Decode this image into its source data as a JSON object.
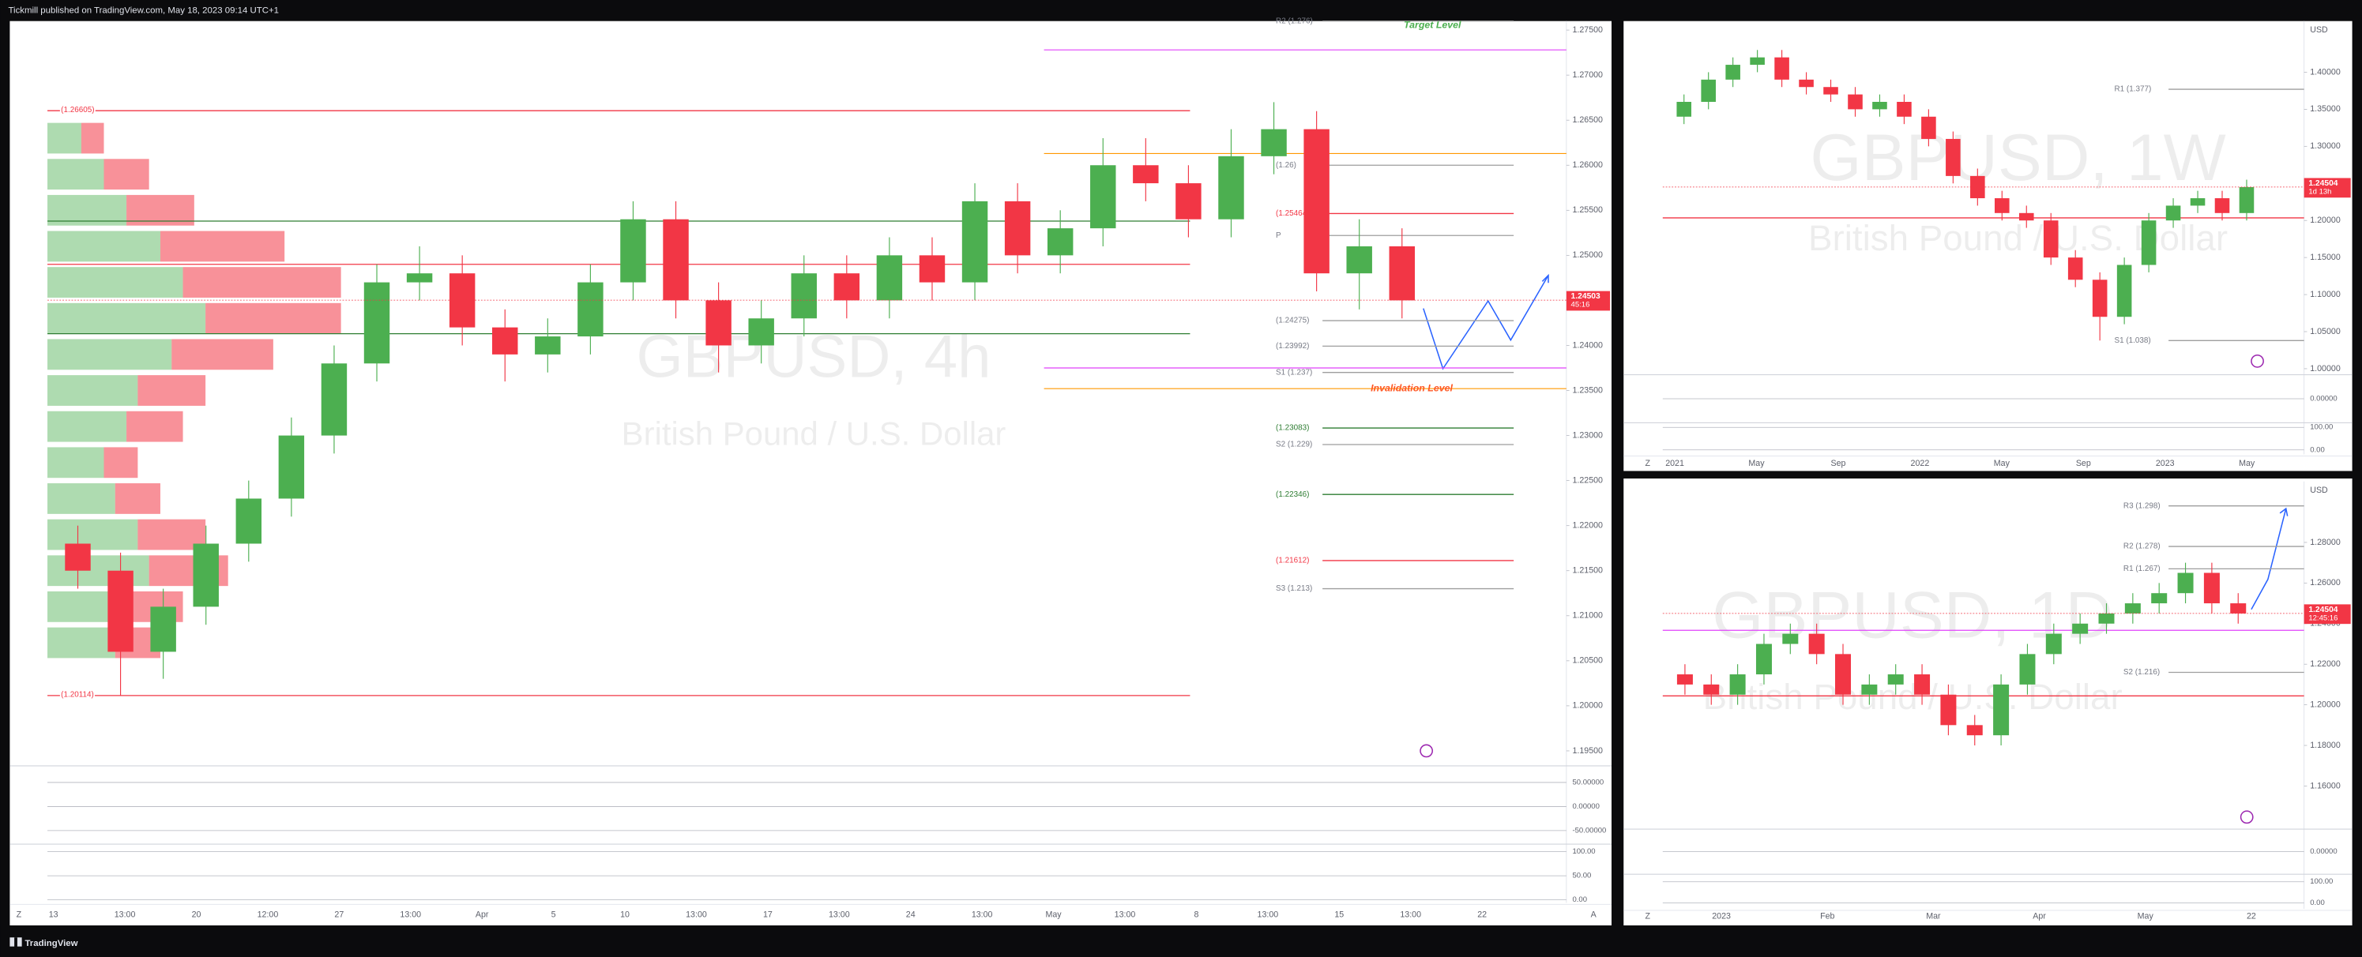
{
  "header": "Tickmill published on TradingView.com, May 18, 2023 09:14 UTC+1",
  "footer": "TradingView",
  "chart_data": [
    {
      "type": "candlestick",
      "title": "GBPUSD, 4h",
      "subtitle": "British Pound / U.S. Dollar",
      "up_color": "#4caf50",
      "down_color": "#f23645",
      "ylim": [
        1.194,
        1.276
      ],
      "yticks": [
        {
          "value": 1.195,
          "label": "1.19500"
        },
        {
          "value": 1.2,
          "label": "1.20000"
        },
        {
          "value": 1.205,
          "label": "1.20500"
        },
        {
          "value": 1.21,
          "label": "1.21000"
        },
        {
          "value": 1.215,
          "label": "1.21500"
        },
        {
          "value": 1.22,
          "label": "1.22000"
        },
        {
          "value": 1.225,
          "label": "1.22500"
        },
        {
          "value": 1.23,
          "label": "1.23000"
        },
        {
          "value": 1.235,
          "label": "1.23500"
        },
        {
          "value": 1.24,
          "label": "1.24000"
        },
        {
          "value": 1.245,
          "label": "1.24500"
        },
        {
          "value": 1.25,
          "label": "1.25000"
        },
        {
          "value": 1.255,
          "label": "1.25500"
        },
        {
          "value": 1.26,
          "label": "1.26000"
        },
        {
          "value": 1.265,
          "label": "1.26500"
        },
        {
          "value": 1.27,
          "label": "1.27000"
        },
        {
          "value": 1.275,
          "label": "1.27500"
        }
      ],
      "open": [
        1.218,
        1.215,
        1.206,
        1.211,
        1.218,
        1.223,
        1.23,
        1.238,
        1.247,
        1.248,
        1.242,
        1.239,
        1.241,
        1.247,
        1.254,
        1.245,
        1.24,
        1.243,
        1.248,
        1.245,
        1.25,
        1.247,
        1.256,
        1.25,
        1.253,
        1.26,
        1.258,
        1.254,
        1.261,
        1.264,
        1.248,
        1.251
      ],
      "high": [
        1.22,
        1.217,
        1.213,
        1.22,
        1.225,
        1.232,
        1.24,
        1.249,
        1.251,
        1.25,
        1.244,
        1.243,
        1.249,
        1.256,
        1.256,
        1.247,
        1.245,
        1.25,
        1.25,
        1.252,
        1.252,
        1.258,
        1.258,
        1.255,
        1.263,
        1.263,
        1.26,
        1.264,
        1.267,
        1.266,
        1.254,
        1.253
      ],
      "low": [
        1.213,
        1.20114,
        1.203,
        1.209,
        1.216,
        1.221,
        1.228,
        1.236,
        1.245,
        1.24,
        1.236,
        1.237,
        1.239,
        1.245,
        1.243,
        1.237,
        1.238,
        1.241,
        1.243,
        1.243,
        1.245,
        1.245,
        1.248,
        1.248,
        1.251,
        1.256,
        1.252,
        1.252,
        1.259,
        1.246,
        1.244,
        1.243
      ],
      "close": [
        1.215,
        1.206,
        1.211,
        1.218,
        1.223,
        1.23,
        1.238,
        1.247,
        1.248,
        1.242,
        1.239,
        1.241,
        1.247,
        1.254,
        1.245,
        1.24,
        1.243,
        1.248,
        1.245,
        1.25,
        1.247,
        1.256,
        1.25,
        1.253,
        1.26,
        1.258,
        1.254,
        1.261,
        1.264,
        1.248,
        1.251,
        1.245
      ],
      "volume_profile": {
        "prices": [
          1.207,
          1.211,
          1.215,
          1.219,
          1.223,
          1.227,
          1.231,
          1.235,
          1.239,
          1.243,
          1.247,
          1.251,
          1.255,
          1.259,
          1.263
        ],
        "buy": [
          30,
          35,
          45,
          40,
          30,
          25,
          35,
          40,
          55,
          70,
          60,
          50,
          35,
          25,
          15
        ],
        "sell": [
          20,
          25,
          35,
          30,
          20,
          15,
          25,
          30,
          45,
          60,
          70,
          55,
          30,
          20,
          10
        ]
      },
      "zones": [
        {
          "value": 1.26605,
          "label": "(1.26605)",
          "color": "#f23645"
        },
        {
          "value": 1.2538,
          "color": "#2e7d32"
        },
        {
          "value": 1.249,
          "color": "#f23645"
        },
        {
          "value": 1.2413,
          "color": "#2e7d32"
        },
        {
          "value": 1.20114,
          "label": "(1.20114)",
          "color": "#f23645"
        }
      ],
      "levels": [
        {
          "value": 1.276,
          "label": "R2 (1.276)",
          "color": "#9e9e9e"
        },
        {
          "value": 1.26,
          "label": "(1.26)",
          "color": "#9e9e9e"
        },
        {
          "value": 1.25464,
          "label": "(1.25464)",
          "color": "#f23645"
        },
        {
          "value": 1.2522,
          "label": "P",
          "color": "#9e9e9e"
        },
        {
          "value": 1.24275,
          "label": "(1.24275)",
          "color": "#9e9e9e"
        },
        {
          "value": 1.23992,
          "label": "(1.23992)",
          "color": "#9e9e9e"
        },
        {
          "value": 1.237,
          "label": "S1 (1.237)",
          "color": "#9e9e9e"
        },
        {
          "value": 1.23083,
          "label": "(1.23083)",
          "color": "#2e7d32"
        },
        {
          "value": 1.229,
          "label": "S2 (1.229)",
          "color": "#9e9e9e"
        },
        {
          "value": 1.22346,
          "label": "(1.22346)",
          "color": "#2e7d32"
        },
        {
          "value": 1.21612,
          "label": "(1.21612)",
          "color": "#f23645"
        },
        {
          "value": 1.213,
          "label": "S3 (1.213)",
          "color": "#9e9e9e"
        }
      ],
      "targets": [
        {
          "value": 1.2728,
          "color": "#e040fb"
        },
        {
          "value": 1.2375,
          "color": "#e040fb"
        },
        {
          "value": 1.2613,
          "color": "#ff9800"
        },
        {
          "value": 1.2352,
          "color": "#ff9800"
        }
      ],
      "annotations": [
        {
          "text": "Target Level",
          "value": 1.2755,
          "color": "#4caf50"
        },
        {
          "text": "Invalidation Level",
          "value": 1.2352,
          "color": "#ff5722"
        }
      ],
      "price": {
        "value": 1.24503,
        "countdown": "45:16"
      },
      "x_labels": [
        "13",
        "13:00",
        "20",
        "12:00",
        "27",
        "13:00",
        "Apr",
        "5",
        "10",
        "13:00",
        "17",
        "13:00",
        "24",
        "13:00",
        "May",
        "13:00",
        "8",
        "13:00",
        "15",
        "13:00",
        "22"
      ],
      "indicators": [
        {
          "ylim": [
            -75,
            81.25
          ],
          "yticks": [
            {
              "value": 50,
              "label": "50.00000"
            },
            {
              "value": 0,
              "label": "0.00000"
            },
            {
              "value": -50,
              "label": "-50.00000"
            }
          ]
        },
        {
          "ylim": [
            -6.25,
            112.5
          ],
          "yticks": [
            {
              "value": 100,
              "label": "100.00"
            },
            {
              "value": 50,
              "label": "50.00"
            },
            {
              "value": 0,
              "label": "0.00"
            }
          ]
        }
      ],
      "buttons": [
        "Z",
        "A"
      ]
    },
    {
      "type": "candlestick",
      "title": "GBPUSD, 1W",
      "subtitle": "British Pound / U.S. Dollar",
      "unit": "USD",
      "up_color": "#4caf50",
      "down_color": "#f23645",
      "ylim": [
        0.996,
        1.469
      ],
      "yticks": [
        {
          "value": 1.0,
          "label": "1.00000"
        },
        {
          "value": 1.05,
          "label": "1.05000"
        },
        {
          "value": 1.1,
          "label": "1.10000"
        },
        {
          "value": 1.15,
          "label": "1.15000"
        },
        {
          "value": 1.2,
          "label": "1.20000"
        },
        {
          "value": 1.25,
          "label": "1.25000"
        },
        {
          "value": 1.3,
          "label": "1.30000"
        },
        {
          "value": 1.35,
          "label": "1.35000"
        },
        {
          "value": 1.4,
          "label": "1.40000"
        }
      ],
      "open": [
        1.34,
        1.36,
        1.39,
        1.41,
        1.42,
        1.39,
        1.38,
        1.37,
        1.35,
        1.36,
        1.34,
        1.31,
        1.26,
        1.23,
        1.21,
        1.2,
        1.15,
        1.12,
        1.07,
        1.14,
        1.2,
        1.22,
        1.23,
        1.21
      ],
      "high": [
        1.37,
        1.4,
        1.42,
        1.43,
        1.43,
        1.4,
        1.39,
        1.38,
        1.37,
        1.37,
        1.35,
        1.32,
        1.27,
        1.24,
        1.22,
        1.21,
        1.16,
        1.13,
        1.15,
        1.21,
        1.23,
        1.24,
        1.24,
        1.255
      ],
      "low": [
        1.33,
        1.35,
        1.38,
        1.4,
        1.38,
        1.37,
        1.36,
        1.34,
        1.34,
        1.33,
        1.3,
        1.25,
        1.22,
        1.2,
        1.19,
        1.14,
        1.11,
        1.038,
        1.06,
        1.13,
        1.19,
        1.21,
        1.2,
        1.2
      ],
      "close": [
        1.36,
        1.39,
        1.41,
        1.42,
        1.39,
        1.38,
        1.37,
        1.35,
        1.36,
        1.34,
        1.31,
        1.26,
        1.23,
        1.21,
        1.2,
        1.15,
        1.12,
        1.07,
        1.14,
        1.2,
        1.22,
        1.23,
        1.21,
        1.245
      ],
      "zones": [
        {
          "value": 1.2035,
          "color": "#f23645"
        }
      ],
      "levels": [
        {
          "value": 1.377,
          "label": "R1 (1.377)",
          "color": "#9e9e9e"
        },
        {
          "value": 1.038,
          "label": "S1 (1.038)",
          "color": "#9e9e9e"
        }
      ],
      "price": {
        "value": 1.24504,
        "countdown": "1d 13h"
      },
      "x_labels": [
        "2021",
        "May",
        "Sep",
        "2022",
        "May",
        "Sep",
        "2023",
        "May"
      ],
      "indicators": [
        {
          "ylim": [
            -85,
            85
          ],
          "yticks": [
            {
              "value": 0,
              "label": "0.00000"
            }
          ]
        },
        {
          "ylim": [
            -20,
            113.3
          ],
          "yticks": [
            {
              "value": 100,
              "label": "100.00"
            },
            {
              "value": 0,
              "label": "0.00"
            }
          ]
        }
      ],
      "buttons": [
        "Z"
      ]
    },
    {
      "type": "candlestick",
      "title": "GBPUSD, 1D",
      "subtitle": "British Pound / U.S. Dollar",
      "unit": "USD",
      "up_color": "#4caf50",
      "down_color": "#f23645",
      "ylim": [
        1.141,
        1.31
      ],
      "yticks": [
        {
          "value": 1.16,
          "label": "1.16000"
        },
        {
          "value": 1.18,
          "label": "1.18000"
        },
        {
          "value": 1.2,
          "label": "1.20000"
        },
        {
          "value": 1.22,
          "label": "1.22000"
        },
        {
          "value": 1.24,
          "label": "1.24000"
        },
        {
          "value": 1.26,
          "label": "1.26000"
        },
        {
          "value": 1.28,
          "label": "1.28000"
        }
      ],
      "open": [
        1.215,
        1.21,
        1.205,
        1.215,
        1.23,
        1.235,
        1.225,
        1.205,
        1.21,
        1.215,
        1.205,
        1.19,
        1.185,
        1.21,
        1.225,
        1.235,
        1.24,
        1.245,
        1.25,
        1.255,
        1.265,
        1.25
      ],
      "high": [
        1.22,
        1.215,
        1.22,
        1.235,
        1.24,
        1.24,
        1.23,
        1.215,
        1.22,
        1.22,
        1.21,
        1.195,
        1.215,
        1.23,
        1.24,
        1.245,
        1.25,
        1.255,
        1.26,
        1.27,
        1.27,
        1.255
      ],
      "low": [
        1.205,
        1.2,
        1.2,
        1.21,
        1.225,
        1.22,
        1.2,
        1.2,
        1.205,
        1.2,
        1.185,
        1.18,
        1.18,
        1.205,
        1.22,
        1.23,
        1.235,
        1.24,
        1.245,
        1.25,
        1.245,
        1.24
      ],
      "close": [
        1.21,
        1.205,
        1.215,
        1.23,
        1.235,
        1.225,
        1.205,
        1.21,
        1.215,
        1.205,
        1.19,
        1.185,
        1.21,
        1.225,
        1.235,
        1.24,
        1.245,
        1.25,
        1.255,
        1.265,
        1.25,
        1.245
      ],
      "zones": [
        {
          "value": 1.2044,
          "color": "#f23645"
        },
        {
          "value": 1.2367,
          "color": "#e040fb"
        }
      ],
      "levels": [
        {
          "value": 1.298,
          "label": "R3 (1.298)",
          "color": "#9e9e9e"
        },
        {
          "value": 1.278,
          "label": "R2 (1.278)",
          "color": "#9e9e9e"
        },
        {
          "value": 1.267,
          "label": "R1 (1.267)",
          "color": "#9e9e9e"
        },
        {
          "value": 1.216,
          "label": "S2 (1.216)",
          "color": "#9e9e9e"
        }
      ],
      "price": {
        "value": 1.24504,
        "countdown": "12:45:16"
      },
      "x_labels": [
        "2023",
        "Feb",
        "Mar",
        "Apr",
        "May",
        "22"
      ],
      "indicators": [
        {
          "ylim": [
            -85,
            85
          ],
          "yticks": [
            {
              "value": 0,
              "label": "0.00000"
            }
          ]
        },
        {
          "ylim": [
            -28.6,
            128.6
          ],
          "yticks": [
            {
              "value": 100,
              "label": "100.00"
            },
            {
              "value": 0,
              "label": "0.00"
            }
          ]
        }
      ],
      "buttons": [
        "Z"
      ]
    }
  ]
}
